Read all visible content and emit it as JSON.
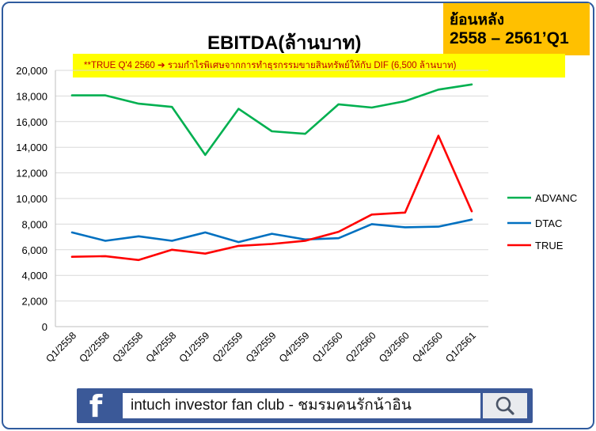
{
  "badge": {
    "line1": "ย้อนหลัง",
    "line2": "2558 – 2561’Q1"
  },
  "title": "EBITDA(ล้านบาท)",
  "note": {
    "prefix": "**TRUE  Q'4 2560",
    "arrow": "➔",
    "text": "รวมกำไรพิเศษจากการทำธุรกรรมขายสินทรัพย์ให้กับ  DIF (6,500 ล้านบาท)"
  },
  "footer": {
    "search_text": "intuch investor fan club - ชมรมคนรักน้าอิน",
    "logo_icon": "facebook-f-icon",
    "search_icon": "magnifier-icon"
  },
  "chart_data": {
    "type": "line",
    "title": "EBITDA(ล้านบาท)",
    "xlabel": "",
    "ylabel": "",
    "ylim": [
      0,
      20000
    ],
    "yticks": [
      0,
      2000,
      4000,
      6000,
      8000,
      10000,
      12000,
      14000,
      16000,
      18000,
      20000
    ],
    "ytick_labels": [
      "0",
      "2,000",
      "4,000",
      "6,000",
      "8,000",
      "10,000",
      "12,000",
      "14,000",
      "16,000",
      "18,000",
      "20,000"
    ],
    "grid": true,
    "legend_position": "right",
    "categories": [
      "Q1/2558",
      "Q2/2558",
      "Q3/2558",
      "Q4/2558",
      "Q1/2559",
      "Q2/2559",
      "Q3/2559",
      "Q4/2559",
      "Q1/2560",
      "Q2/2560",
      "Q3/2560",
      "Q4/2560",
      "Q1/2561"
    ],
    "series": [
      {
        "name": "ADVANC",
        "color": "#00b050",
        "values": [
          18050,
          18050,
          17400,
          17150,
          13400,
          17000,
          15250,
          15050,
          17350,
          17100,
          17600,
          18500,
          18900
        ]
      },
      {
        "name": "DTAC",
        "color": "#0070c0",
        "values": [
          7350,
          6700,
          7050,
          6700,
          7350,
          6600,
          7250,
          6800,
          6900,
          8000,
          7750,
          7800,
          8350
        ]
      },
      {
        "name": "TRUE",
        "color": "#ff0000",
        "values": [
          5450,
          5500,
          5200,
          6000,
          5700,
          6300,
          6450,
          6700,
          7400,
          8750,
          8900,
          14900,
          9000
        ]
      }
    ]
  }
}
